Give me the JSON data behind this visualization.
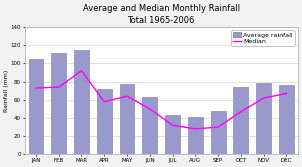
{
  "title_line1": "Average and Median Monthly Rainfall",
  "title_line2": "Total 1965-2006",
  "ylabel": "Rainfall (mm)",
  "months": [
    "JAN",
    "FEB",
    "MAR",
    "APR",
    "MAY",
    "JUN",
    "JUL",
    "AUG",
    "SEP",
    "OCT",
    "NOV",
    "DEC"
  ],
  "avg_rainfall": [
    105,
    112,
    115,
    72,
    77,
    63,
    43,
    41,
    48,
    74,
    78,
    76
  ],
  "median_rainfall": [
    73,
    74,
    92,
    58,
    64,
    50,
    32,
    28,
    30,
    47,
    62,
    67
  ],
  "bar_color": "#9999cc",
  "bar_edgecolor": "#7777aa",
  "median_color": "#ff00ff",
  "ylim": [
    0,
    140
  ],
  "yticks": [
    0,
    20,
    40,
    60,
    80,
    100,
    120,
    140
  ],
  "legend_labels": [
    "Average rainfall",
    "Median"
  ],
  "background_color": "#f2f2f2",
  "plot_bg_color": "#ffffff",
  "title_fontsize": 6,
  "axis_label_fontsize": 4.5,
  "tick_fontsize": 4,
  "legend_fontsize": 4.5
}
